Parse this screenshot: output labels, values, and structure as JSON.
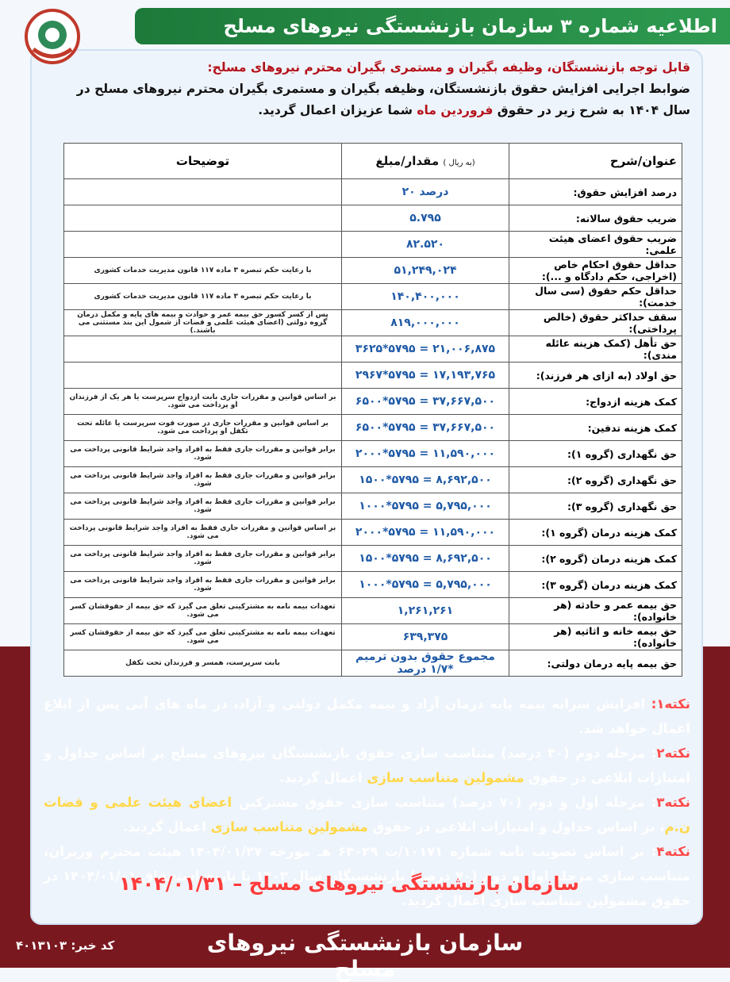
{
  "header": {
    "title": "اطلاعیه شماره ۳ سازمان بازنشستگی نیروهای مسلح"
  },
  "intro": {
    "heading": "قابل توجه بازنشستگان، وظیفه بگیران و مستمری بگیران محترم نیروهای مسلح:",
    "segments": [
      {
        "t": "ضوابط اجرایی افزایش حقوق بازنشستگان، وظیفه بگیران و مستمری بگیران محترم نیروهای مسلح در سال ۱۴۰۴ به شرح زیر در حقوق "
      },
      {
        "t": "فروردین ماه",
        "em": true
      },
      {
        "t": " شما عزیزان اعمال گردید."
      }
    ]
  },
  "table": {
    "headers": [
      "عنوان/شرح",
      "مقدار/مبلغ",
      "توضیحات"
    ],
    "unit": "( به ریال)",
    "rows": [
      {
        "title": "درصد افزایش حقوق:",
        "amount": "۲۰ درصد"
      },
      {
        "title": "ضریب حقوق سالانه:",
        "amount": "۵.۷۹۵"
      },
      {
        "title": "ضریب حقوق اعضای هیئت علمی:",
        "amount": "۸۲.۵۲۰"
      },
      {
        "title": "حداقل حقوق احکام خاص (اخراجی، حکم دادگاه و ...):",
        "amount": "۵۱,۲۴۹,۰۲۴",
        "note": "با رعایت حکم تبصره ۳ ماده ۱۱۷ قانون مدیریت خدمات کشوری"
      },
      {
        "title": "حداقل حکم حقوق (سی سال خدمت):",
        "amount": "۱۴۰,۴۰۰,۰۰۰",
        "note": "با رعایت حکم تبصره ۳ ماده ۱۱۷ قانون مدیریت خدمات کشوری"
      },
      {
        "title": "سقف حداکثر حقوق (خالص پرداختی):",
        "amount": "۸۱۹,۰۰۰,۰۰۰",
        "note": "پس از کسر کسور حق بیمه عمر و حوادث و بیمه های پایه و مکمل درمان گروه دولتی (اعضای هیئت علمی و قضات از شمول این بند مستثنی می باشند.)"
      },
      {
        "title": "حق تأهل (کمک هزینه عائله مندی):",
        "amount": "۳۶۲۵*۵۷۹۵ = ۲۱,۰۰۶,۸۷۵"
      },
      {
        "title": "حق اولاد (به ازای هر فرزند):",
        "amount": "۲۹۶۷*۵۷۹۵ = ۱۷,۱۹۳,۷۶۵"
      },
      {
        "title": "کمک هزینه ازدواج:",
        "amount": "۶۵۰۰*۵۷۹۵ = ۳۷,۶۶۷,۵۰۰",
        "note": "بر اساس قوانین و مقررات جاری بابت ازدواج سرپرست یا هر یک از فرزندان او پرداخت می شود."
      },
      {
        "title": "کمک هزینه تدفین:",
        "amount": "۶۵۰۰*۵۷۹۵ = ۳۷,۶۶۷,۵۰۰",
        "note": "بر اساس قوانین و مقررات جاری در صورت فوت سرپرست یا عائله تحت تکفل او پرداخت می شود."
      },
      {
        "title": "حق نگهداری (گروه ۱):",
        "amount": "۲۰۰۰*۵۷۹۵ = ۱۱,۵۹۰,۰۰۰",
        "note": "برابر قوانین و مقررات جاری فقط به افراد واجد شرایط قانونی پرداخت می شود."
      },
      {
        "title": "حق نگهداری (گروه ۲):",
        "amount": "۱۵۰۰*۵۷۹۵ = ۸,۶۹۲,۵۰۰",
        "note": "برابر قوانین و مقررات جاری فقط به افراد واجد شرایط قانونی پرداخت می شود."
      },
      {
        "title": "حق نگهداری (گروه ۳):",
        "amount": "۱۰۰۰*۵۷۹۵ = ۵,۷۹۵,۰۰۰",
        "note": "برابر قوانین و مقررات جاری فقط به افراد واجد شرایط قانونی پرداخت می شود."
      },
      {
        "title": "کمک هزینه درمان (گروه ۱):",
        "amount": "۲۰۰۰*۵۷۹۵ = ۱۱,۵۹۰,۰۰۰",
        "note": "بر اساس قوانین و مقررات جاری فقط به افراد واجد شرایط قانونی پرداخت می شود."
      },
      {
        "title": "کمک هزینه درمان (گروه ۲):",
        "amount": "۱۵۰۰*۵۷۹۵ = ۸,۶۹۲,۵۰۰",
        "note": "برابر قوانین و مقررات جاری فقط به افراد واجد شرایط قانونی پرداخت می شود."
      },
      {
        "title": "کمک هزینه درمان (گروه ۳):",
        "amount": "۱۰۰۰*۵۷۹۵ = ۵,۷۹۵,۰۰۰",
        "note": "برابر قوانین و مقررات جاری فقط به افراد واجد شرایط قانونی پرداخت می شود."
      },
      {
        "title": "حق بیمه عمر و حادثه (هر خانواده):",
        "amount": "۱,۲۶۱,۲۶۱",
        "note": "تعهدات بیمه نامه به مشترکینی تعلق می گیرد که حق بیمه از حقوقشان کسر می شود."
      },
      {
        "title": "حق بیمه خانه و اثاثیه (هر خانواده):",
        "amount": "۶۳۹,۳۷۵",
        "note": "تعهدات بیمه نامه به مشترکینی تعلق می گیرد که حق بیمه از حقوقشان کسر می شود."
      },
      {
        "title": "حق بیمه پایه درمان دولتی:",
        "amount": "مجموع حقوق بدون ترمیم *۱/۷ درصد",
        "note": "بابت سرپرست، همسر و فرزندان تحت تکفل"
      }
    ]
  },
  "notes": [
    {
      "label": "نکته۱:",
      "segments": [
        {
          "t": " افزایش سرانه بیمه پایه درمان آزاد و بیمه مکمل دولتی و آزاد، در ماه های آتی پس از ابلاغ اعمال خواهد شد."
        }
      ]
    },
    {
      "label": "نکته۲",
      "segments": [
        {
          "t": ": مرحله دوم (۳۰ درصد) متناسب سازی حقوق بازنشستگان نیروهای مسلح بر اساس جداول و امتیازات ابلاغی در حقوق "
        },
        {
          "t": "مشمولین متناسب سازی",
          "em": true
        },
        {
          "t": " اعمال گردید."
        }
      ]
    },
    {
      "label": "نکته۳",
      "segments": [
        {
          "t": ": مرحله اول و دوم (۷۰ درصد) متناسب سازی حقوق مشترکین "
        },
        {
          "t": "اعضای هیئت علمی و قضات ن.م",
          "em": true
        },
        {
          "t": "، بر اساس جداول و امتیازات ابلاغی در حقوق "
        },
        {
          "t": "مشمولین متناسب سازی",
          "em": true
        },
        {
          "t": " اعمال گردید."
        }
      ]
    },
    {
      "label": "نکته۴",
      "segments": [
        {
          "t": ": بر اساس تصویب نامه شماره ۱۰۱۷۱/ت ۶۴۰۲۹ هـ مورخه ۱۴۰۴/۰۱/۲۷ هیئت محترم وزیران، متناسب سازی مرحله اول و دوم (۷۰ درصد) بازنشستگان سال ۱۴۰۳ با تاریخ استحقاق ۱۴۰۴/۰۱/۰۱ در حقوق مشمولین متناسب سازی اعمال گردید."
        }
      ]
    }
  ],
  "signature": "سازمان بازنشستگی نیروهای مسلح – ۱۴۰۴/۰۱/۳۱",
  "footer": {
    "code_label": "کد خبر:",
    "code": "۴۰۱۳۱۰۳",
    "brand": "سازمان بازنشستگی نیروهای مسلح"
  }
}
